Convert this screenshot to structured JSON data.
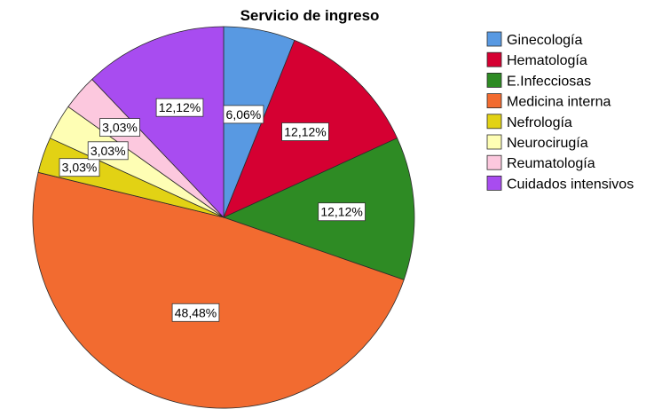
{
  "chart_data": {
    "type": "pie",
    "title": "Servicio de ingreso",
    "legend_position": "right",
    "categories": [
      "Ginecología",
      "Hematología",
      "E.Infecciosas",
      "Medicina interna",
      "Nefrología",
      "Neurocirugía",
      "Reumatología",
      "Cuidados intensivos"
    ],
    "values": [
      6.06,
      12.12,
      12.12,
      48.48,
      3.03,
      3.03,
      3.03,
      12.12
    ],
    "labels": [
      "6,06%",
      "12,12%",
      "12,12%",
      "48,48%",
      "3,03%",
      "3,03%",
      "3,03%",
      "12,12%"
    ],
    "colors": [
      "#5899E2",
      "#D50032",
      "#2E8B24",
      "#F26B30",
      "#E2D214",
      "#FEFEB4",
      "#FCC8DE",
      "#A84CF0"
    ]
  }
}
